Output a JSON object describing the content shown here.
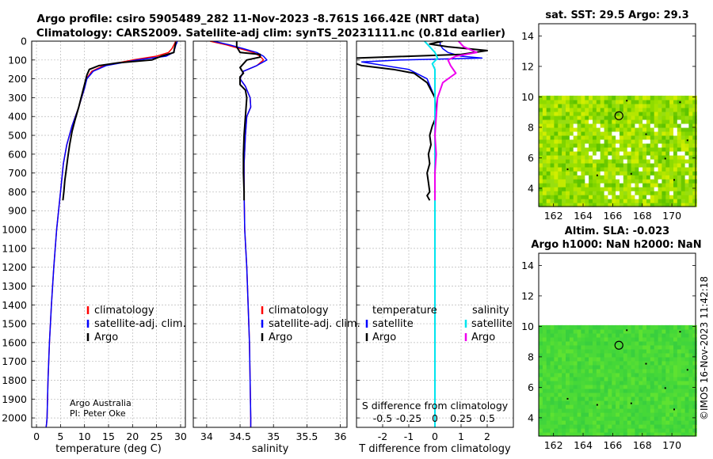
{
  "header": {
    "title_line1": "Argo profile: csiro 5905489_282 11-Nov-2023 -8.761S 166.42E (NRT data)",
    "title_line2": "Climatology: CARS2009. Satellite-adj clim: synTS_20231111.nc (0.81d earlier)"
  },
  "credit": {
    "line1": "Argo Australia",
    "line2": "PI: Peter Oke"
  },
  "footer_stamp": "©IMOS 16-Nov-2023 11:42:18",
  "colors": {
    "clim": "#ff0000",
    "sat": "#0000ff",
    "argo": "#000000",
    "sat_sal": "#00e5ee",
    "argo_sal": "#ee00ee",
    "sst_bg": "#9be000",
    "sla_bg": "#44d838"
  },
  "chart_data": [
    {
      "id": "temperature",
      "type": "line",
      "xlabel": "temperature (deg C)",
      "ylabel": "",
      "xlim": [
        -1,
        31
      ],
      "ylim": [
        2050,
        0
      ],
      "xticks": [
        0,
        5,
        10,
        15,
        20,
        25,
        30
      ],
      "xtick_labels": [
        "0",
        "5",
        "10",
        "15",
        "20",
        "25",
        "30"
      ],
      "yticks": [
        0,
        100,
        200,
        300,
        400,
        500,
        600,
        700,
        800,
        900,
        1000,
        1100,
        1200,
        1300,
        1400,
        1500,
        1600,
        1700,
        1800,
        1900,
        2000
      ],
      "ytick_labels": [
        "0",
        "100",
        "200",
        "300",
        "400",
        "500",
        "600",
        "700",
        "800",
        "900",
        "1000",
        "1100",
        "1200",
        "1300",
        "1400",
        "1500",
        "1600",
        "1700",
        "1800",
        "1900",
        "2000"
      ],
      "legend": [
        "climatology",
        "satellite-adj. clim.",
        "Argo"
      ],
      "series": [
        {
          "name": "climatology",
          "color": "#ff0000",
          "width": 1.5,
          "x": [
            29.0,
            28.8,
            28.6,
            28.2,
            27.5,
            25.0,
            20.0,
            14.0,
            11.5,
            10.4,
            10.0,
            8.8,
            7.4,
            6.3,
            5.6,
            5.0,
            4.2,
            3.6,
            3.1,
            2.7,
            2.4,
            2.2,
            2.1,
            2.0
          ],
          "y": [
            0,
            10,
            20,
            40,
            60,
            80,
            100,
            130,
            160,
            200,
            250,
            350,
            450,
            550,
            650,
            800,
            1000,
            1200,
            1400,
            1600,
            1800,
            2000,
            2030,
            2050
          ]
        },
        {
          "name": "satellite-adj. clim.",
          "color": "#0000ff",
          "width": 1.5,
          "x": [
            29.3,
            29.2,
            29.0,
            28.8,
            28.5,
            27.0,
            21.0,
            14.5,
            11.8,
            10.5,
            10.0,
            8.8,
            7.4,
            6.3,
            5.6,
            5.0,
            4.2,
            3.6,
            3.1,
            2.7,
            2.4,
            2.2,
            2.1,
            2.0
          ],
          "y": [
            0,
            10,
            20,
            40,
            60,
            80,
            100,
            130,
            160,
            200,
            250,
            350,
            450,
            550,
            650,
            800,
            1000,
            1200,
            1400,
            1600,
            1800,
            2000,
            2030,
            2050
          ]
        },
        {
          "name": "Argo",
          "color": "#000000",
          "width": 2,
          "x": [
            29.0,
            28.9,
            28.7,
            28.6,
            26.0,
            24.0,
            17.0,
            13.0,
            11.0,
            10.5,
            10.0,
            9.3,
            8.8,
            8.0,
            7.4,
            6.9,
            6.5,
            6.2,
            5.9,
            5.7,
            5.5
          ],
          "y": [
            5,
            20,
            40,
            60,
            80,
            100,
            115,
            130,
            150,
            180,
            230,
            300,
            350,
            420,
            480,
            550,
            620,
            680,
            740,
            800,
            845
          ]
        }
      ]
    },
    {
      "id": "salinity",
      "type": "line",
      "xlabel": "salinity",
      "xlim": [
        33.8,
        36.1
      ],
      "ylim": [
        2050,
        0
      ],
      "xticks": [
        34,
        34.5,
        35,
        35.5,
        36
      ],
      "xtick_labels": [
        "34",
        "34.5",
        "35",
        "35.5",
        "36"
      ],
      "legend": [
        "climatology",
        "satellite-adj. clim.",
        "Argo"
      ],
      "series": [
        {
          "name": "climatology",
          "color": "#ff0000",
          "width": 1.5,
          "x": [
            34.05,
            34.3,
            34.5,
            34.7,
            34.8,
            34.85,
            34.75,
            34.55,
            34.5,
            34.58,
            34.65,
            34.66,
            34.6,
            34.58,
            34.56,
            34.56,
            34.57,
            34.6,
            34.62,
            34.64,
            34.65,
            34.66,
            34.66
          ],
          "y": [
            0,
            20,
            40,
            60,
            80,
            100,
            130,
            160,
            200,
            240,
            300,
            350,
            400,
            500,
            650,
            800,
            1000,
            1200,
            1400,
            1600,
            1800,
            2000,
            2050
          ]
        },
        {
          "name": "satellite-adj. clim.",
          "color": "#0000ff",
          "width": 1.5,
          "x": [
            34.1,
            34.35,
            34.55,
            34.75,
            34.85,
            34.9,
            34.75,
            34.55,
            34.5,
            34.58,
            34.65,
            34.66,
            34.6,
            34.58,
            34.56,
            34.56,
            34.57,
            34.6,
            34.62,
            34.64,
            34.65,
            34.66,
            34.66
          ],
          "y": [
            0,
            20,
            40,
            60,
            80,
            100,
            130,
            160,
            200,
            240,
            300,
            350,
            400,
            500,
            650,
            800,
            1000,
            1200,
            1400,
            1600,
            1800,
            2000,
            2050
          ]
        },
        {
          "name": "Argo",
          "color": "#000000",
          "width": 2,
          "x": [
            34.45,
            34.45,
            34.5,
            34.8,
            34.8,
            34.6,
            34.5,
            34.55,
            34.5,
            34.5,
            34.58,
            34.6,
            34.58,
            34.56,
            34.55,
            34.55,
            34.56,
            34.56
          ],
          "y": [
            0,
            30,
            60,
            70,
            85,
            100,
            140,
            170,
            190,
            230,
            260,
            300,
            400,
            500,
            600,
            700,
            800,
            845
          ]
        }
      ]
    },
    {
      "id": "differences",
      "type": "line",
      "xlabel": "T difference from climatology",
      "xlabel_top": "S difference from climatology",
      "xlim": [
        -3,
        3
      ],
      "ylim": [
        2050,
        0
      ],
      "xticks": [
        -2,
        -1,
        0,
        1,
        2
      ],
      "xtick_labels": [
        "-2",
        "-1",
        "0",
        "1",
        "2"
      ],
      "sticks_labels": [
        "-0.5",
        "-0.25",
        "0",
        "0.25",
        "0.5"
      ],
      "legend_temperature_title": "temperature",
      "legend_salinity_title": "salinity",
      "legend_temperature": [
        "satellite",
        "Argo"
      ],
      "legend_salinity": [
        "satellite",
        "Argo"
      ],
      "series": [
        {
          "name": "temperature satellite",
          "color": "#0000ff",
          "width": 1.5,
          "x": [
            0.2,
            0.2,
            0.2,
            0.3,
            0.5,
            1.0,
            1.8,
            -1.3,
            -2.8,
            -1.0,
            -0.3,
            0,
            0,
            0,
            0,
            0,
            0,
            0,
            0,
            0,
            0,
            0
          ],
          "y": [
            0,
            10,
            20,
            40,
            60,
            80,
            90,
            100,
            110,
            150,
            200,
            300,
            400,
            500,
            600,
            800,
            1000,
            1200,
            1400,
            1600,
            1800,
            2000
          ]
        },
        {
          "name": "temperature Argo",
          "color": "#000000",
          "width": 2,
          "x": [
            0.3,
            -0.2,
            0.5,
            2.0,
            1.0,
            -3.0,
            -3.2,
            -2.8,
            -1.6,
            -0.8,
            -0.3,
            0.0,
            0.05,
            -0.1,
            -0.2,
            -0.15,
            -0.25,
            -0.2,
            -0.3,
            -0.25,
            -0.2,
            -0.3,
            -0.2
          ],
          "y": [
            0,
            15,
            30,
            50,
            70,
            90,
            110,
            130,
            150,
            170,
            220,
            300,
            400,
            450,
            500,
            550,
            600,
            650,
            700,
            750,
            800,
            820,
            845
          ]
        },
        {
          "name": "salinity satellite",
          "color": "#00e5ee",
          "width": 2,
          "x": [
            -0.4,
            -0.2,
            0.0,
            0.1,
            -0.1,
            0,
            0,
            0,
            0,
            0,
            0,
            0,
            0,
            0,
            0
          ],
          "y": [
            0,
            30,
            60,
            90,
            120,
            150,
            300,
            500,
            700,
            900,
            1100,
            1400,
            1700,
            2000,
            2050
          ]
        },
        {
          "name": "salinity Argo",
          "color": "#ee00ee",
          "width": 2,
          "x": [
            0.9,
            1.1,
            1.6,
            0.8,
            0.5,
            0.6,
            0.8,
            0.3,
            0.1,
            0.05,
            0.0,
            0.05,
            0.0,
            0.0,
            0.0
          ],
          "y": [
            0,
            30,
            60,
            80,
            100,
            130,
            170,
            220,
            300,
            400,
            500,
            600,
            700,
            800,
            845
          ]
        }
      ]
    },
    {
      "id": "sst_map",
      "type": "heatmap",
      "title": "sat. SST: 29.5 Argo: 29.3",
      "xlim": [
        161,
        171.6
      ],
      "ylim": [
        2.8,
        14.8
      ],
      "xticks": [
        162,
        164,
        166,
        168,
        170
      ],
      "xtick_labels": [
        "162",
        "164",
        "166",
        "168",
        "170"
      ],
      "yticks": [
        4,
        6,
        8,
        10,
        12,
        14
      ],
      "ytick_labels": [
        "4",
        "6",
        "8",
        "10",
        "12",
        "14"
      ],
      "data_top": 10,
      "marker": [
        166.42,
        8.761
      ]
    },
    {
      "id": "sla_map",
      "type": "heatmap",
      "title": "Altim. SLA: -0.023",
      "subtitle": "Argo h1000: NaN h2000: NaN",
      "xlim": [
        161,
        171.6
      ],
      "ylim": [
        2.8,
        14.8
      ],
      "xticks": [
        162,
        164,
        166,
        168,
        170
      ],
      "xtick_labels": [
        "162",
        "164",
        "166",
        "168",
        "170"
      ],
      "yticks": [
        4,
        6,
        8,
        10,
        12,
        14
      ],
      "ytick_labels": [
        "4",
        "6",
        "8",
        "10",
        "12",
        "14"
      ],
      "data_top": 10,
      "marker": [
        166.42,
        8.761
      ]
    }
  ]
}
